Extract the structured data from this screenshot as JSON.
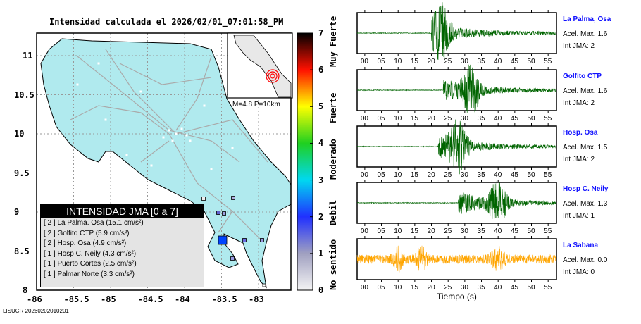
{
  "title": "Intensidad calculada el 2026/02/01_07:01:58_PM",
  "credit": "LISUCR 20260202010201",
  "map": {
    "lon_ticks": [
      "-86",
      "-85.5",
      "-85",
      "-84.5",
      "-84",
      "-83.5",
      "-83"
    ],
    "lat_ticks": [
      "11",
      "10.5",
      "10",
      "9.5",
      "9",
      "8.5",
      "8"
    ],
    "inset_label": "M=4.8 P=10km",
    "land_color": "#b0eaee"
  },
  "colorbar": {
    "ticks": [
      "0",
      "1",
      "2",
      "3",
      "4",
      "5",
      "6",
      "7"
    ],
    "categories": [
      "No sentido",
      "Debil",
      "Moderado",
      "Fuerte",
      "Muy Fuerte"
    ]
  },
  "legend": {
    "title": "INTENSIDAD JMA [0 a 7]",
    "items": [
      {
        "text": "[ 2 ]  La Palma. Osa (15.1 cm/s²)"
      },
      {
        "text": "[ 2 ]  Golfito CTP (5.9 cm/s²)"
      },
      {
        "text": "[ 2 ]  Hosp. Osa (4.9 cm/s²)"
      },
      {
        "text": "[ 1 ]  Hosp C. Neily (4.3 cm/s²)"
      },
      {
        "text": "[ 1 ]  Puerto Cortes (2.5 cm/s²)"
      },
      {
        "text": "[ 1 ]  Palmar Norte (3.3 cm/s²)"
      }
    ]
  },
  "chart_data": {
    "type": "line",
    "xlabel": "Tiempo (s)",
    "x_ticks": [
      "00",
      "05",
      "10",
      "15",
      "20",
      "25",
      "30",
      "35",
      "40",
      "45",
      "50",
      "55"
    ],
    "xlim": [
      -2.3,
      57.5
    ],
    "series": [
      {
        "name": "La Palma, Osa",
        "acel": "Acel. Max. 1.6",
        "jma": "Int JMA: 2",
        "onset": 20,
        "peak": 23,
        "color": "#006400"
      },
      {
        "name": "Golfito CTP",
        "acel": "Acel. Max. 1.6",
        "jma": "Int JMA: 2",
        "onset": 23.5,
        "peak": 32,
        "color": "#006400"
      },
      {
        "name": "Hosp. Osa",
        "acel": "Acel. Max. 1.5",
        "jma": "Int JMA: 2",
        "onset": 22,
        "peak": 28,
        "color": "#006400"
      },
      {
        "name": "Hosp C. Neily",
        "acel": "Acel. Max. 1.3",
        "jma": "Int JMA: 1",
        "onset": 28,
        "peak": 40,
        "color": "#006400"
      },
      {
        "name": "La Sabana",
        "acel": "Acel. Max. 0.0",
        "jma": "Int JMA: 0",
        "onset": -2.3,
        "peak": 10,
        "color": "#ffa500"
      }
    ]
  }
}
